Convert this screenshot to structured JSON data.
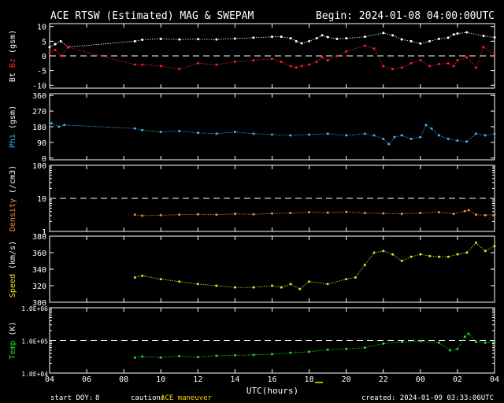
{
  "header": {
    "title": "ACE RTSW (Estimated) MAG & SWEPAM",
    "begin": "Begin: 2024-01-08 04:00:00UTC"
  },
  "footer": {
    "start_doy_label": "start DOY:",
    "start_doy_value": "8",
    "caution_label": "caution:",
    "caution_value": "ACE maneuver",
    "created": "created: 2024-01-09 03:33:06UTC"
  },
  "colors": {
    "background": "#000000",
    "axes": "#ffffff",
    "bt": "#ffffff",
    "bz": "#ff2020",
    "phi": "#33b5ff",
    "density": "#ff8a2a",
    "speed": "#f0e020",
    "temp": "#22e022",
    "caution": "#ffd000",
    "dash": "#ffffff"
  },
  "chart_data": {
    "type": "scatter",
    "xlabel": "UTC(hours)",
    "x_ticks": [
      "04",
      "06",
      "08",
      "10",
      "12",
      "14",
      "16",
      "18",
      "20",
      "22",
      "00",
      "02",
      "04"
    ],
    "x_range_hours": [
      0,
      24
    ],
    "panels": [
      {
        "id": "mag",
        "ylabel_parts": [
          "Bt",
          "Bz",
          "(gsm)"
        ],
        "yticks": [
          "10",
          "5",
          "0",
          "-5",
          "-10"
        ],
        "ytick_values": [
          10,
          5,
          0,
          -5,
          -10
        ],
        "ylim": [
          -11,
          11
        ],
        "scale": "linear",
        "dashed_at": 0,
        "series": [
          {
            "name": "Bt",
            "color_key": "bt",
            "x": [
              0,
              0.3,
              0.6,
              1,
              4.6,
              5,
              6,
              7,
              8,
              9,
              10,
              11,
              12,
              12.5,
              13,
              13.3,
              13.6,
              14,
              14.4,
              14.7,
              15,
              15.5,
              16,
              17,
              18,
              18.5,
              19,
              19.5,
              20,
              20.5,
              21,
              21.5,
              21.8,
              22,
              22.5,
              23.4,
              24
            ],
            "y": [
              3,
              4,
              5,
              3,
              5,
              5.5,
              5.8,
              5.6,
              5.7,
              5.6,
              5.9,
              6.2,
              6.5,
              6.5,
              6,
              5,
              4.3,
              5,
              6,
              7,
              6.4,
              5.8,
              6,
              6.5,
              7.8,
              7,
              5.6,
              5,
              4.2,
              5,
              5.8,
              6.2,
              7.3,
              7.6,
              8,
              6.8,
              6.3
            ]
          },
          {
            "name": "Bz",
            "color_key": "bz",
            "x": [
              0,
              0.3,
              0.6,
              1,
              4.6,
              5,
              6,
              7,
              8,
              9,
              10,
              11,
              12,
              12.5,
              13,
              13.3,
              13.6,
              14,
              14.4,
              14.7,
              15,
              15.5,
              16,
              17,
              17.5,
              18,
              18.5,
              19,
              19.5,
              20,
              20.5,
              21,
              21.5,
              21.8,
              22,
              22.5,
              23,
              23.4,
              24
            ],
            "y": [
              1,
              2,
              0,
              3,
              -3,
              -3,
              -3.5,
              -4.5,
              -2.5,
              -3,
              -2,
              -1.5,
              -1,
              -2,
              -3.5,
              -4,
              -3.5,
              -3,
              -2,
              -0.5,
              -1.5,
              0,
              1.5,
              3.5,
              2.5,
              -3.5,
              -4.5,
              -4,
              -2.5,
              -1.5,
              -3.5,
              -2.8,
              -2.5,
              -3.5,
              -1.5,
              -0.5,
              -4,
              3,
              0.5
            ]
          }
        ]
      },
      {
        "id": "phi",
        "ylabel_parts": [
          "Phi",
          "(gsm)"
        ],
        "yticks": [
          "360",
          "270",
          "180",
          "90",
          "0"
        ],
        "ytick_values": [
          360,
          270,
          180,
          90,
          0
        ],
        "ylim": [
          -10,
          370
        ],
        "scale": "linear",
        "series": [
          {
            "name": "Phi",
            "color_key": "phi",
            "x": [
              0.1,
              0.5,
              0.8,
              4.6,
              5,
              6,
              7,
              8,
              9,
              10,
              11,
              12,
              13,
              14,
              15,
              16,
              17,
              17.5,
              18,
              18.3,
              18.6,
              19,
              19.5,
              20,
              20.3,
              20.6,
              21,
              21.5,
              22,
              22.5,
              23,
              23.5,
              24
            ],
            "y": [
              200,
              180,
              190,
              170,
              160,
              150,
              155,
              145,
              140,
              150,
              140,
              135,
              130,
              135,
              140,
              130,
              140,
              130,
              110,
              80,
              120,
              130,
              110,
              120,
              190,
              170,
              130,
              110,
              100,
              95,
              140,
              130,
              140
            ]
          }
        ]
      },
      {
        "id": "density",
        "ylabel_parts": [
          "Density",
          "(/cm3)"
        ],
        "yticks": [
          "100",
          "10",
          "1"
        ],
        "ytick_values": [
          100,
          10,
          1
        ],
        "ylim": [
          1,
          100
        ],
        "scale": "log",
        "dashed_at": 10,
        "series": [
          {
            "name": "Density",
            "color_key": "density",
            "x": [
              4.6,
              5,
              6,
              7,
              8,
              9,
              10,
              11,
              12,
              13,
              14,
              15,
              16,
              17,
              18,
              19,
              20,
              21,
              21.8,
              22.4,
              22.6,
              23,
              23.5,
              24
            ],
            "y": [
              3.2,
              3.0,
              3.1,
              3.2,
              3.3,
              3.2,
              3.4,
              3.3,
              3.5,
              3.6,
              3.8,
              3.7,
              3.9,
              3.6,
              3.5,
              3.4,
              3.6,
              3.8,
              3.4,
              4.1,
              4.4,
              3.2,
              3.1,
              3.2
            ]
          }
        ]
      },
      {
        "id": "speed",
        "ylabel_parts": [
          "Speed",
          "(km/s)"
        ],
        "yticks": [
          "380",
          "360",
          "340",
          "320",
          "300"
        ],
        "ytick_values": [
          380,
          360,
          340,
          320,
          300
        ],
        "ylim": [
          300,
          380
        ],
        "scale": "linear",
        "series": [
          {
            "name": "Speed",
            "color_key": "speed",
            "x": [
              4.6,
              5,
              6,
              7,
              8,
              9,
              10,
              11,
              12,
              12.5,
              13,
              13.5,
              14,
              15,
              16,
              16.5,
              17,
              17.5,
              18,
              18.5,
              19,
              19.5,
              20,
              20.5,
              21,
              21.5,
              22,
              22.5,
              23,
              23.5,
              24
            ],
            "y": [
              330,
              332,
              328,
              325,
              322,
              320,
              318,
              318,
              320,
              318,
              322,
              316,
              325,
              322,
              328,
              330,
              345,
              360,
              362,
              358,
              350,
              355,
              358,
              356,
              355,
              355,
              358,
              360,
              372,
              362,
              368
            ]
          }
        ]
      },
      {
        "id": "temp",
        "ylabel_parts": [
          "Temp",
          "(K)"
        ],
        "yticks": [
          "1.0E+06",
          "1.0E+05",
          "1.0E+04"
        ],
        "ytick_values": [
          1000000,
          100000,
          10000
        ],
        "ylim": [
          10000,
          1000000
        ],
        "scale": "log",
        "dashed_at": 100000,
        "series": [
          {
            "name": "Temp",
            "color_key": "temp",
            "x": [
              4.6,
              5,
              6,
              7,
              8,
              9,
              10,
              11,
              12,
              13,
              14,
              15,
              16,
              17,
              18,
              19,
              20,
              21,
              21.6,
              22,
              22.4,
              22.6,
              23,
              23.5,
              24
            ],
            "y": [
              30000,
              32000,
              30000,
              33000,
              31000,
              34000,
              35000,
              36000,
              38000,
              42000,
              45000,
              52000,
              55000,
              60000,
              80000,
              90000,
              95000,
              85000,
              50000,
              55000,
              130000,
              160000,
              90000,
              85000,
              90000
            ]
          }
        ]
      }
    ]
  }
}
